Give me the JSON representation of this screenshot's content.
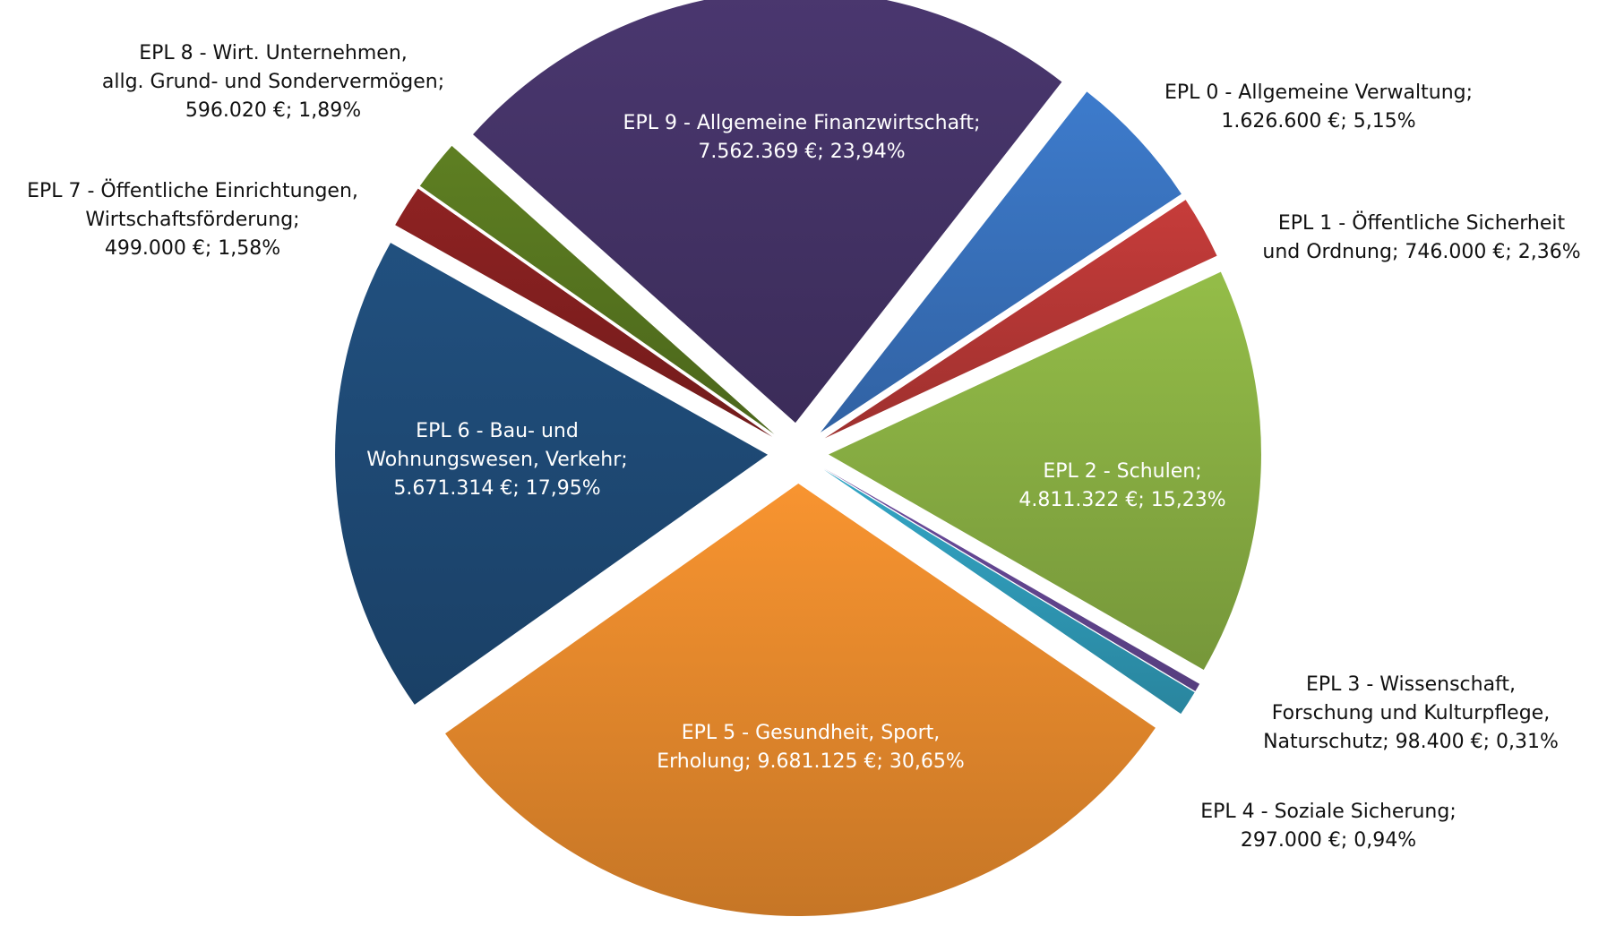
{
  "chart_data": {
    "type": "pie",
    "values": [
      1626600,
      746000,
      4811322,
      98400,
      297000,
      9681125,
      5671314,
      499000,
      596020,
      7562369
    ],
    "value_labels": [
      [
        "EPL 0 - Allgemeine Verwaltung;",
        "1.626.600 €; 5,15%"
      ],
      [
        "EPL 1 - Öffentliche Sicherheit",
        "und Ordnung; 746.000 €; 2,36%"
      ],
      [
        "EPL 2 - Schulen;",
        "4.811.322 €; 15,23%"
      ],
      [
        "EPL 3 - Wissenschaft,",
        "Forschung und Kulturpflege,",
        "Naturschutz; 98.400 €; 0,31%"
      ],
      [
        "EPL 4 - Soziale Sicherung;",
        "297.000 €; 0,94%"
      ],
      [
        "EPL 5 - Gesundheit, Sport,",
        "Erholung; 9.681.125 €; 30,65%"
      ],
      [
        "EPL 6 - Bau- und",
        "Wohnungswesen, Verkehr;",
        "5.671.314 €; 17,95%"
      ],
      [
        "EPL 7 - Öffentliche Einrichtungen,",
        "Wirtschaftsförderung;",
        "499.000 €; 1,58%"
      ],
      [
        "EPL 8 - Wirt. Unternehmen,",
        "allg. Grund- und Sondervermögen;",
        "596.020 €; 1,89%"
      ],
      [
        "EPL 9 - Allgemeine Finanzwirtschaft;",
        "7.562.369 €; 23,94%"
      ]
    ],
    "colors": [
      "#3d7bcc",
      "#c63c3a",
      "#94bd48",
      "#6c4c9e",
      "#33a6c6",
      "#f89430",
      "#21507f",
      "#8e2222",
      "#5e7f22",
      "#4a376f"
    ]
  }
}
